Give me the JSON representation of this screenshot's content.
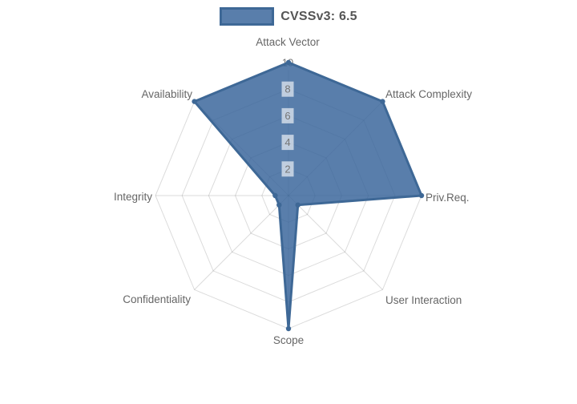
{
  "legend": {
    "label": "CVSSv3: 6.5"
  },
  "chart_data": {
    "type": "radar",
    "title": "CVSSv3: 6.5",
    "categories": [
      "Attack Vector",
      "Attack Complexity",
      "Priv.Req.",
      "User Interaction",
      "Scope",
      "Confidentiality",
      "Integrity",
      "Availability"
    ],
    "series": [
      {
        "name": "CVSSv3: 6.5",
        "values": [
          10,
          10,
          10,
          1,
          10,
          1,
          1,
          10
        ]
      }
    ],
    "rticks": [
      2,
      4,
      6,
      8,
      10
    ],
    "rlim": [
      0,
      10
    ],
    "grid": true,
    "legend_position": "top",
    "colors": {
      "fill": "rgba(52,98,152,0.82)",
      "line": "#3e6896",
      "point": "#3e6896",
      "grid": "rgba(0,0,0,0.14)",
      "tick_text": "#757575",
      "tick_backdrop": "rgba(255,255,255,0.62)",
      "tick10_backdrop": "rgba(255,255,255,0.92)",
      "label_text": "#666666"
    }
  }
}
